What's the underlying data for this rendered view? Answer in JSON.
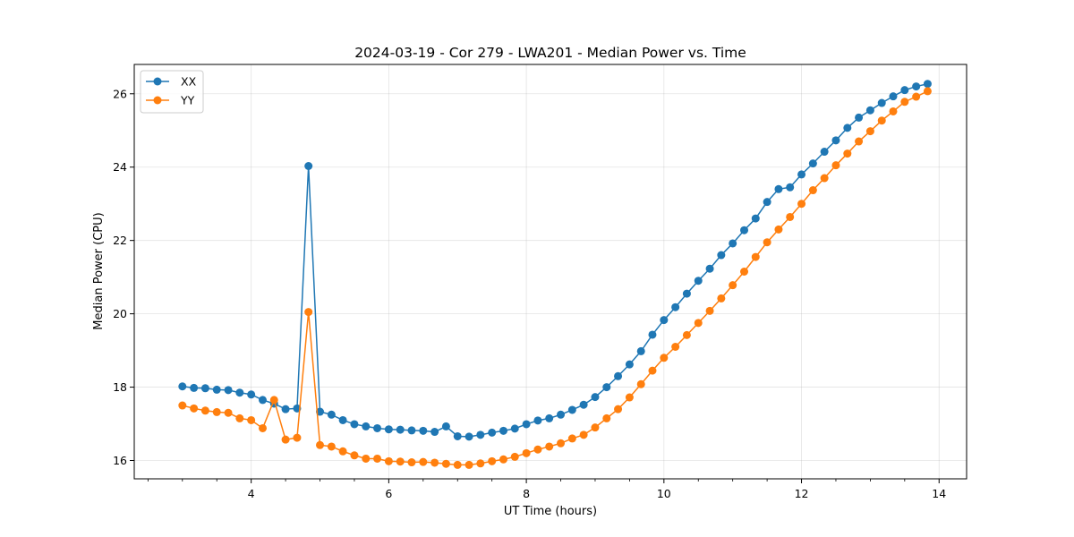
{
  "chart_data": {
    "type": "line",
    "title": "2024-03-19 - Cor 279 - LWA201 - Median Power vs. Time",
    "xlabel": "UT Time (hours)",
    "ylabel": "Median Power (CPU)",
    "xlim": [
      2.3,
      14.4
    ],
    "ylim": [
      15.5,
      26.8
    ],
    "xticks": [
      4,
      6,
      8,
      10,
      12,
      14
    ],
    "xtick_labels": [
      "4",
      "6",
      "8",
      "10",
      "12",
      "14"
    ],
    "yticks": [
      16,
      18,
      20,
      22,
      24,
      26
    ],
    "ytick_labels": [
      "16",
      "18",
      "20",
      "22",
      "24",
      "26"
    ],
    "grid": true,
    "legend": "top-left",
    "x": [
      3.0,
      3.167,
      3.333,
      3.5,
      3.667,
      3.833,
      4.0,
      4.167,
      4.333,
      4.5,
      4.667,
      4.833,
      5.0,
      5.167,
      5.333,
      5.5,
      5.667,
      5.833,
      6.0,
      6.167,
      6.333,
      6.5,
      6.667,
      6.833,
      7.0,
      7.167,
      7.333,
      7.5,
      7.667,
      7.833,
      8.0,
      8.167,
      8.333,
      8.5,
      8.667,
      8.833,
      9.0,
      9.167,
      9.333,
      9.5,
      9.667,
      9.833,
      10.0,
      10.167,
      10.333,
      10.5,
      10.667,
      10.833,
      11.0,
      11.167,
      11.333,
      11.5,
      11.667,
      11.833,
      12.0,
      12.167,
      12.333,
      12.5,
      12.667,
      12.833,
      13.0,
      13.167,
      13.333,
      13.5,
      13.667,
      13.833
    ],
    "series": [
      {
        "name": "XX",
        "color": "#1f77b4",
        "values": [
          18.02,
          17.98,
          17.97,
          17.93,
          17.92,
          17.85,
          17.8,
          17.65,
          17.55,
          17.4,
          17.42,
          24.03,
          17.33,
          17.25,
          17.1,
          16.99,
          16.93,
          16.88,
          16.85,
          16.84,
          16.82,
          16.81,
          16.78,
          16.93,
          16.66,
          16.65,
          16.7,
          16.76,
          16.81,
          16.87,
          16.99,
          17.09,
          17.15,
          17.25,
          17.38,
          17.52,
          17.73,
          18.0,
          18.3,
          18.62,
          18.98,
          19.43,
          19.83,
          20.18,
          20.55,
          20.9,
          21.23,
          21.6,
          21.92,
          22.28,
          22.6,
          23.05,
          23.4,
          23.45,
          23.8,
          24.1,
          24.42,
          24.73,
          25.07,
          25.35,
          25.55,
          25.75,
          25.93,
          26.1,
          26.2,
          26.27
        ]
      },
      {
        "name": "YY",
        "color": "#ff7f0e",
        "values": [
          17.5,
          17.42,
          17.36,
          17.32,
          17.3,
          17.15,
          17.1,
          16.88,
          17.65,
          16.57,
          16.62,
          20.05,
          16.42,
          16.38,
          16.25,
          16.14,
          16.05,
          16.05,
          15.98,
          15.97,
          15.95,
          15.96,
          15.94,
          15.91,
          15.88,
          15.88,
          15.92,
          15.98,
          16.03,
          16.1,
          16.2,
          16.3,
          16.38,
          16.47,
          16.6,
          16.7,
          16.9,
          17.15,
          17.4,
          17.72,
          18.08,
          18.45,
          18.8,
          19.1,
          19.42,
          19.75,
          20.08,
          20.42,
          20.78,
          21.15,
          21.55,
          21.95,
          22.3,
          22.64,
          23.0,
          23.37,
          23.7,
          24.05,
          24.37,
          24.7,
          24.98,
          25.27,
          25.52,
          25.78,
          25.92,
          26.07
        ]
      }
    ]
  }
}
